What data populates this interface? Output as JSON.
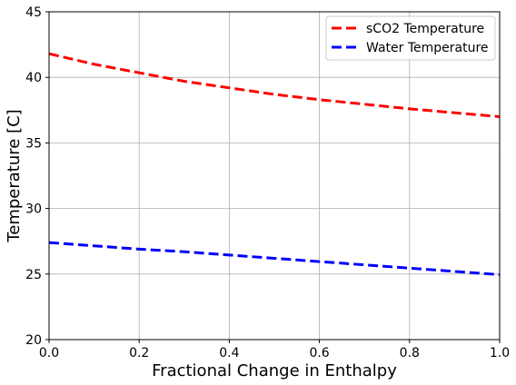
{
  "chart_data": {
    "type": "line",
    "title": "",
    "xlabel": "Fractional Change in Enthalpy",
    "ylabel": "Temperature [C]",
    "xlim": [
      0,
      1
    ],
    "ylim": [
      20,
      45
    ],
    "xticks": [
      0.0,
      0.2,
      0.4,
      0.6,
      0.8,
      1.0
    ],
    "xtick_labels": [
      "0.0",
      "0.2",
      "0.4",
      "0.6",
      "0.8",
      "1.0"
    ],
    "yticks": [
      20,
      25,
      30,
      35,
      40,
      45
    ],
    "ytick_labels": [
      "20",
      "25",
      "30",
      "35",
      "40",
      "45"
    ],
    "grid": true,
    "legend_position": "top-right",
    "series": [
      {
        "name": "sCO2 Temperature",
        "color": "#ff0000",
        "linestyle": "dashed",
        "x": [
          0.0,
          0.1,
          0.2,
          0.3,
          0.4,
          0.5,
          0.6,
          0.7,
          0.8,
          0.9,
          1.0
        ],
        "y": [
          41.8,
          41.0,
          40.35,
          39.7,
          39.2,
          38.7,
          38.3,
          37.95,
          37.6,
          37.3,
          37.0
        ]
      },
      {
        "name": "Water Temperature",
        "color": "#0000ff",
        "linestyle": "dashed",
        "x": [
          0.0,
          0.1,
          0.2,
          0.3,
          0.4,
          0.5,
          0.6,
          0.7,
          0.8,
          0.9,
          1.0
        ],
        "y": [
          27.4,
          27.15,
          26.9,
          26.7,
          26.45,
          26.2,
          25.95,
          25.7,
          25.45,
          25.2,
          24.95
        ]
      }
    ]
  }
}
